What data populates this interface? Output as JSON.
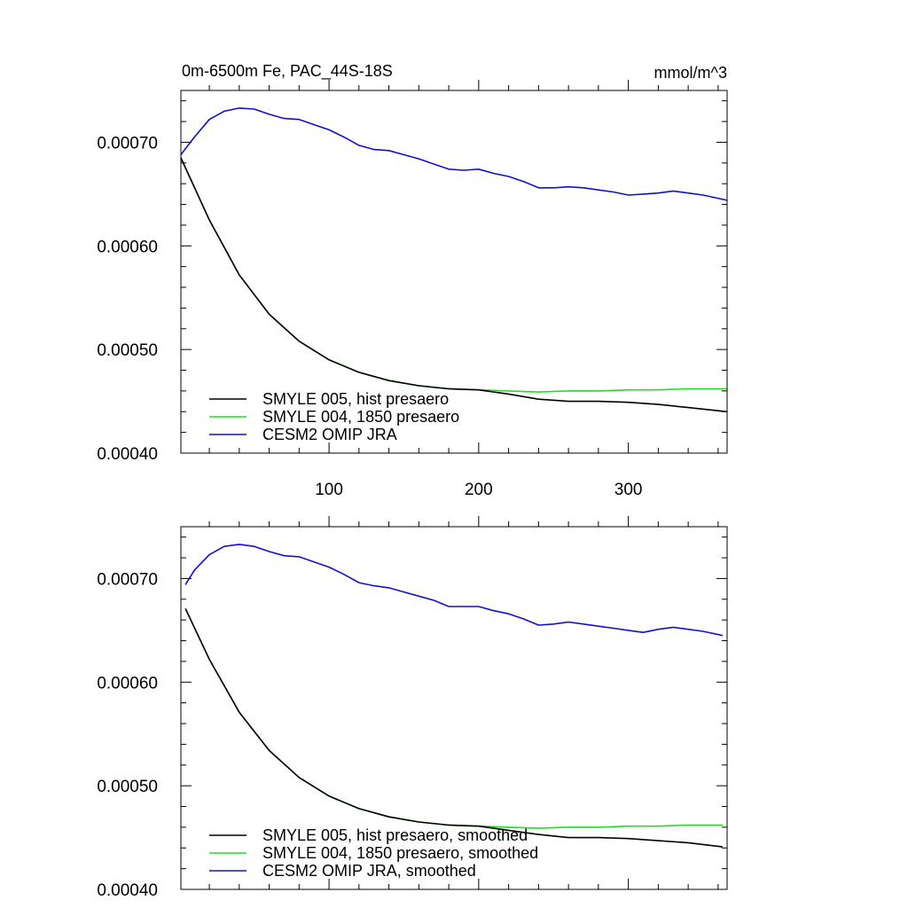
{
  "chart_data": [
    {
      "type": "line",
      "title_left": "0m-6500m Fe, PAC_44S-18S",
      "title_right": "mmol/m^3",
      "xlim": [
        1,
        366
      ],
      "ylim": [
        0.0004,
        0.00075
      ],
      "xticks": [
        100,
        200,
        300
      ],
      "xtick_labels": [
        "100",
        "200",
        "300"
      ],
      "yticks": [
        0.0004,
        0.0005,
        0.0006,
        0.0007
      ],
      "ytick_labels": [
        "0.00040",
        "0.00050",
        "0.00060",
        "0.00070"
      ],
      "legend_position": "bottom-left",
      "series": [
        {
          "name": "SMYLE 005, hist presaero",
          "color": "#000000",
          "x": [
            1,
            20,
            40,
            60,
            80,
            100,
            120,
            140,
            160,
            180,
            200,
            220,
            240,
            260,
            280,
            300,
            320,
            340,
            366
          ],
          "y": [
            0.000685,
            0.000625,
            0.000572,
            0.000534,
            0.000508,
            0.00049,
            0.000478,
            0.00047,
            0.000465,
            0.000462,
            0.000461,
            0.000457,
            0.000452,
            0.00045,
            0.00045,
            0.000449,
            0.000447,
            0.000444,
            0.00044
          ]
        },
        {
          "name": "SMYLE 004, 1850 presaero",
          "color": "#22dd22",
          "x": [
            1,
            20,
            40,
            60,
            80,
            100,
            120,
            140,
            160,
            180,
            200,
            220,
            240,
            260,
            280,
            300,
            320,
            340,
            366
          ],
          "y": [
            0.000685,
            0.000625,
            0.000572,
            0.000534,
            0.000508,
            0.00049,
            0.000478,
            0.00047,
            0.000465,
            0.000462,
            0.000461,
            0.00046,
            0.000459,
            0.00046,
            0.00046,
            0.000461,
            0.000461,
            0.000462,
            0.000462
          ]
        },
        {
          "name": "CESM2 OMIP JRA",
          "color": "#1111cc",
          "x": [
            1,
            10,
            20,
            30,
            40,
            50,
            60,
            70,
            80,
            90,
            100,
            110,
            120,
            130,
            140,
            150,
            160,
            170,
            180,
            190,
            200,
            210,
            220,
            230,
            240,
            250,
            260,
            270,
            280,
            290,
            300,
            310,
            320,
            330,
            340,
            350,
            366
          ],
          "y": [
            0.000688,
            0.000705,
            0.000722,
            0.00073,
            0.000733,
            0.000732,
            0.000727,
            0.000723,
            0.000722,
            0.000717,
            0.000712,
            0.000705,
            0.000697,
            0.000693,
            0.000692,
            0.000688,
            0.000684,
            0.000679,
            0.000674,
            0.000673,
            0.000674,
            0.00067,
            0.000667,
            0.000662,
            0.000656,
            0.000656,
            0.000657,
            0.000656,
            0.000654,
            0.000652,
            0.000649,
            0.00065,
            0.000651,
            0.000653,
            0.000651,
            0.000649,
            0.000644
          ]
        }
      ]
    },
    {
      "type": "line",
      "xlim": [
        1,
        366
      ],
      "ylim": [
        0.0004,
        0.00075
      ],
      "xticks": [
        100,
        200,
        300
      ],
      "xtick_labels": [],
      "yticks": [
        0.0004,
        0.0005,
        0.0006,
        0.0007
      ],
      "ytick_labels": [
        "0.00040",
        "0.00050",
        "0.00060",
        "0.00070"
      ],
      "legend_position": "bottom-left",
      "series": [
        {
          "name": "SMYLE 005, hist presaero, smoothed",
          "color": "#000000",
          "x": [
            4,
            20,
            40,
            60,
            80,
            100,
            120,
            140,
            160,
            180,
            200,
            220,
            240,
            260,
            280,
            300,
            320,
            340,
            363
          ],
          "y": [
            0.000671,
            0.000622,
            0.000571,
            0.000534,
            0.000508,
            0.00049,
            0.000478,
            0.00047,
            0.000465,
            0.000462,
            0.000461,
            0.000457,
            0.000453,
            0.00045,
            0.00045,
            0.000449,
            0.000447,
            0.000445,
            0.000441
          ]
        },
        {
          "name": "SMYLE 004, 1850 presaero, smoothed",
          "color": "#22dd22",
          "x": [
            4,
            20,
            40,
            60,
            80,
            100,
            120,
            140,
            160,
            180,
            200,
            220,
            240,
            260,
            280,
            300,
            320,
            340,
            363
          ],
          "y": [
            0.000671,
            0.000622,
            0.000571,
            0.000534,
            0.000508,
            0.00049,
            0.000478,
            0.00047,
            0.000465,
            0.000462,
            0.000461,
            0.00046,
            0.000459,
            0.00046,
            0.00046,
            0.000461,
            0.000461,
            0.000462,
            0.000462
          ]
        },
        {
          "name": "CESM2 OMIP JRA, smoothed",
          "color": "#1111cc",
          "x": [
            4,
            10,
            20,
            30,
            40,
            50,
            60,
            70,
            80,
            90,
            100,
            110,
            120,
            130,
            140,
            150,
            160,
            170,
            180,
            190,
            200,
            210,
            220,
            230,
            240,
            250,
            260,
            270,
            280,
            290,
            300,
            310,
            320,
            330,
            340,
            350,
            363
          ],
          "y": [
            0.000694,
            0.000708,
            0.000723,
            0.000731,
            0.000733,
            0.000731,
            0.000726,
            0.000722,
            0.000721,
            0.000716,
            0.000711,
            0.000704,
            0.000696,
            0.000693,
            0.000691,
            0.000687,
            0.000683,
            0.000679,
            0.000673,
            0.000673,
            0.000673,
            0.000669,
            0.000666,
            0.000661,
            0.000655,
            0.000656,
            0.000658,
            0.000656,
            0.000654,
            0.000652,
            0.00065,
            0.000648,
            0.000651,
            0.000653,
            0.000651,
            0.000649,
            0.000645
          ]
        }
      ]
    }
  ]
}
